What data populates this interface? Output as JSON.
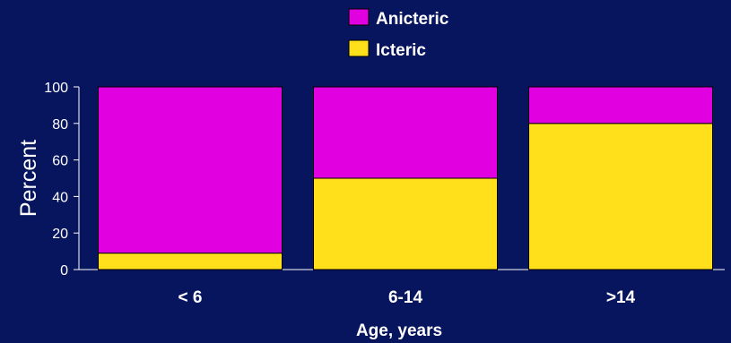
{
  "colors": {
    "background": "#07145e",
    "anicteric": "#e000e0",
    "icteric": "#ffe01a",
    "text": "#ffffff",
    "axis": "#ffffff"
  },
  "chart_data": {
    "type": "bar",
    "stacked": true,
    "categories": [
      "< 6",
      "6-14",
      ">14"
    ],
    "series": [
      {
        "name": "Icteric",
        "values": [
          9,
          50,
          80
        ],
        "color": "#ffe01a"
      },
      {
        "name": "Anicteric",
        "values": [
          91,
          50,
          20
        ],
        "color": "#e000e0"
      }
    ],
    "legend": {
      "entries": [
        "Anicteric",
        "Icteric"
      ],
      "placement": "top-center"
    },
    "title": "",
    "xlabel": "Age, years",
    "ylabel": "Percent",
    "ylim": [
      0,
      100
    ],
    "yticks": [
      0,
      20,
      40,
      60,
      80,
      100
    ],
    "grid": false
  }
}
